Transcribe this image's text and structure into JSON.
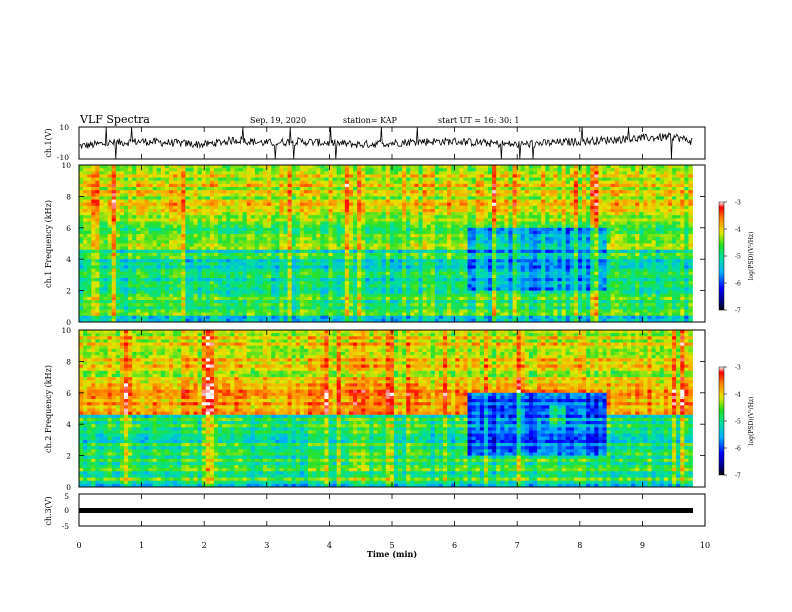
{
  "header": {
    "title": "VLF Spectra",
    "date": "Sep. 19, 2020",
    "station": "station= KAP",
    "start": "start  UT =   16: 30: 1"
  },
  "chart_data": [
    {
      "type": "line",
      "panel": "ch1-waveform",
      "ylabel": "ch.1(V)",
      "ylim": [
        -10,
        10
      ],
      "yticks": [
        "10",
        "-10"
      ],
      "xlim": [
        0,
        10
      ],
      "x": [
        0,
        0.5,
        1,
        1.5,
        2,
        2.5,
        3,
        3.5,
        4,
        4.5,
        5,
        5.5,
        6,
        6.5,
        7,
        7.5,
        8,
        8.5,
        9,
        9.5,
        9.8
      ],
      "y": [
        -2,
        0,
        1,
        0,
        -1,
        2,
        0,
        1,
        0,
        -1,
        0,
        1,
        1,
        0,
        -1,
        0,
        1,
        2,
        3,
        4,
        1
      ]
    },
    {
      "type": "heatmap",
      "panel": "ch1-spectrogram",
      "ylabel": "ch.1\nFrequency  (kHz)",
      "ylim": [
        0,
        10
      ],
      "yticks": [
        "0",
        "2",
        "4",
        "6",
        "8",
        "10"
      ],
      "xlim": [
        0,
        10
      ],
      "colorbar": {
        "label": "log(PSD)(V²/Hz)",
        "range": [
          -7,
          -3
        ],
        "ticks": [
          "-3",
          "-4",
          "-5",
          "-6",
          "-7"
        ]
      }
    },
    {
      "type": "heatmap",
      "panel": "ch2-spectrogram",
      "ylabel": "ch.2\nFrequency  (kHz)",
      "ylim": [
        0,
        10
      ],
      "yticks": [
        "0",
        "2",
        "4",
        "6",
        "8",
        "10"
      ],
      "xlim": [
        0,
        10
      ],
      "colorbar": {
        "label": "log(PSD)(V²/Hz)",
        "range": [
          -7,
          -3
        ],
        "ticks": [
          "-3",
          "-4",
          "-5",
          "-6",
          "-7"
        ]
      }
    },
    {
      "type": "line",
      "panel": "ch3-waveform",
      "ylabel": "ch.3(V)",
      "ylim": [
        -5,
        5
      ],
      "yticks": [
        "5",
        "0",
        "-5"
      ],
      "xlim": [
        0,
        10
      ],
      "x": [
        0,
        9.8
      ],
      "y": [
        0,
        0
      ]
    }
  ],
  "xaxis": {
    "label": "Time  (min)",
    "ticks": [
      "0",
      "1",
      "2",
      "3",
      "4",
      "5",
      "6",
      "7",
      "8",
      "9",
      "10"
    ]
  }
}
